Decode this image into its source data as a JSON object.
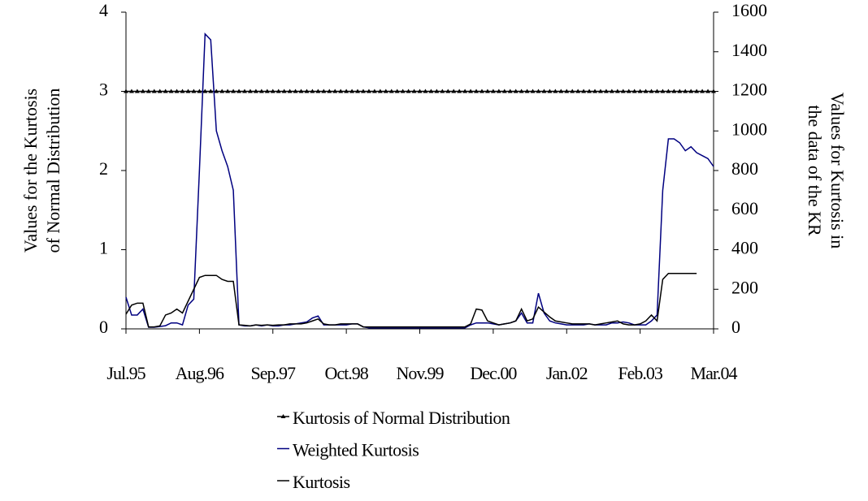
{
  "chart_data": {
    "type": "line",
    "y_label": [
      "Values for the Kurtosis",
      "of Normal Distribution"
    ],
    "y2_label": [
      "Values for Kurtosis in",
      "the data of the KR"
    ],
    "categories": [
      "Jul.95",
      null,
      null,
      null,
      null,
      null,
      null,
      null,
      null,
      null,
      null,
      null,
      null,
      "Aug.96",
      null,
      null,
      null,
      null,
      null,
      null,
      null,
      null,
      null,
      null,
      null,
      null,
      "Sep.97",
      null,
      null,
      null,
      null,
      null,
      null,
      null,
      null,
      null,
      null,
      null,
      null,
      "Oct.98",
      null,
      null,
      null,
      null,
      null,
      null,
      null,
      null,
      null,
      null,
      null,
      null,
      "Nov.99",
      null,
      null,
      null,
      null,
      null,
      null,
      null,
      null,
      null,
      null,
      null,
      null,
      "Dec.00",
      null,
      null,
      null,
      null,
      null,
      null,
      null,
      null,
      null,
      null,
      null,
      null,
      "Jan.02",
      null,
      null,
      null,
      null,
      null,
      null,
      null,
      null,
      null,
      null,
      null,
      null,
      "Feb.03",
      null,
      null,
      null,
      null,
      null,
      null,
      null,
      null,
      null,
      null,
      null,
      null,
      "Mar.04"
    ],
    "ylim": [
      0,
      4
    ],
    "yticks": [
      0,
      1,
      2,
      3,
      4
    ],
    "y2lim": [
      0,
      1600
    ],
    "y2ticks": [
      0,
      200,
      400,
      600,
      800,
      1000,
      1200,
      1400,
      1600
    ],
    "legend": "bottom",
    "series": [
      {
        "name": "Kurtosis of Normal Distribution",
        "color": "#000000",
        "markers": true,
        "values": [
          3,
          3,
          3,
          3,
          3,
          3,
          3,
          3,
          3,
          3,
          3,
          3,
          3,
          3,
          3,
          3,
          3,
          3,
          3,
          3,
          3,
          3,
          3,
          3,
          3,
          3,
          3,
          3,
          3,
          3,
          3,
          3,
          3,
          3,
          3,
          3,
          3,
          3,
          3,
          3,
          3,
          3,
          3,
          3,
          3,
          3,
          3,
          3,
          3,
          3,
          3,
          3,
          3,
          3,
          3,
          3,
          3,
          3,
          3,
          3,
          3,
          3,
          3,
          3,
          3,
          3,
          3,
          3,
          3,
          3,
          3,
          3,
          3,
          3,
          3,
          3,
          3,
          3,
          3,
          3,
          3,
          3,
          3,
          3,
          3,
          3,
          3,
          3,
          3,
          3,
          3,
          3,
          3,
          3,
          3,
          3,
          3,
          3,
          3,
          3,
          3,
          3,
          3,
          3,
          3
        ]
      },
      {
        "name": "Weighted Kurtosis",
        "color": "#000080",
        "axis": "y2",
        "values": [
          160,
          70,
          70,
          100,
          8,
          8,
          12,
          16,
          30,
          30,
          20,
          120,
          150,
          800,
          1490,
          1460,
          1000,
          900,
          820,
          700,
          20,
          15,
          15,
          20,
          15,
          20,
          15,
          15,
          20,
          20,
          25,
          30,
          35,
          55,
          65,
          20,
          20,
          20,
          20,
          20,
          25,
          25,
          10,
          5,
          5,
          5,
          5,
          5,
          5,
          5,
          5,
          5,
          5,
          5,
          5,
          5,
          5,
          5,
          5,
          5,
          5,
          20,
          30,
          30,
          30,
          25,
          20,
          25,
          30,
          40,
          80,
          30,
          30,
          180,
          80,
          40,
          30,
          25,
          20,
          20,
          20,
          20,
          25,
          20,
          20,
          20,
          30,
          30,
          35,
          30,
          20,
          20,
          20,
          40,
          70,
          700,
          960,
          960,
          940,
          900,
          920,
          890,
          875,
          860,
          820
        ]
      },
      {
        "name": "Kurtosis",
        "color": "#000000",
        "axis": "y2",
        "values": [
          74,
          120,
          130,
          130,
          10,
          10,
          15,
          70,
          80,
          100,
          80,
          140,
          200,
          260,
          270,
          270,
          270,
          250,
          240,
          240,
          20,
          18,
          15,
          20,
          18,
          20,
          18,
          20,
          20,
          25,
          25,
          25,
          30,
          40,
          50,
          25,
          20,
          20,
          25,
          25,
          25,
          25,
          10,
          10,
          10,
          10,
          10,
          10,
          10,
          10,
          10,
          10,
          10,
          10,
          10,
          10,
          10,
          10,
          10,
          10,
          10,
          25,
          100,
          95,
          40,
          30,
          20,
          25,
          30,
          40,
          100,
          40,
          50,
          110,
          85,
          60,
          40,
          35,
          30,
          25,
          25,
          25,
          25,
          20,
          25,
          30,
          35,
          40,
          25,
          20,
          20,
          25,
          40,
          70,
          40,
          250,
          280,
          280,
          280,
          280,
          280,
          280,
          null,
          null,
          null
        ]
      }
    ]
  }
}
